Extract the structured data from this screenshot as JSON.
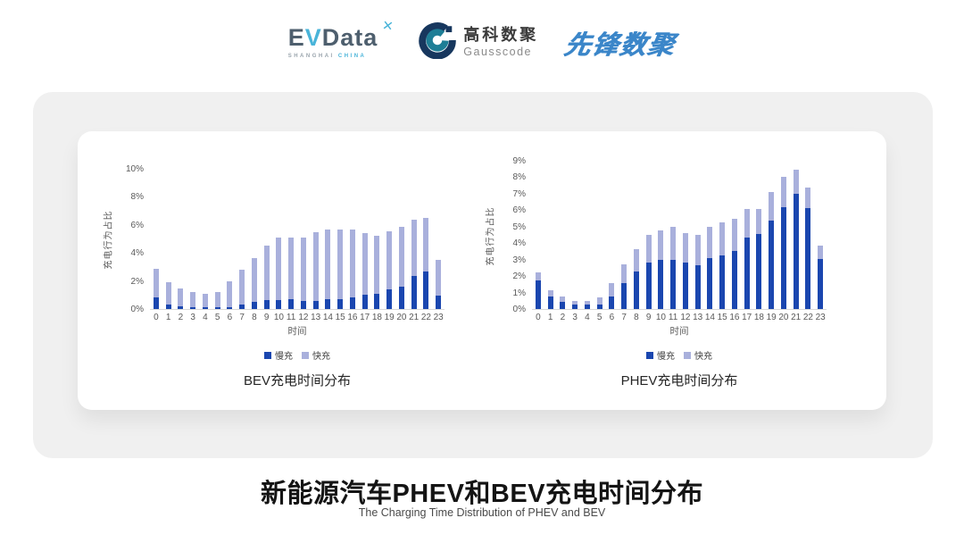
{
  "header": {
    "evdata": {
      "ev_e": "E",
      "ev_v": "V",
      "rest": "Data",
      "mark": "✕",
      "sub_left": "SHANGHAI",
      "sub_right": "CHINA"
    },
    "gausscode": {
      "cn": "高科数聚",
      "en": "Gausscode"
    },
    "pioneer": "先锋数聚"
  },
  "chart_data": [
    {
      "type": "bar",
      "stacked": true,
      "title": "BEV充电时间分布",
      "xlabel": "时间",
      "ylabel": "充电行为占比",
      "categories": [
        "0",
        "1",
        "2",
        "3",
        "4",
        "5",
        "6",
        "7",
        "8",
        "9",
        "10",
        "11",
        "12",
        "13",
        "14",
        "15",
        "16",
        "17",
        "18",
        "19",
        "20",
        "21",
        "22",
        "23"
      ],
      "series": [
        {
          "name": "慢充",
          "color": "#1a46af",
          "values": [
            0.8,
            0.35,
            0.2,
            0.1,
            0.1,
            0.1,
            0.15,
            0.35,
            0.5,
            0.65,
            0.65,
            0.7,
            0.6,
            0.6,
            0.7,
            0.7,
            0.8,
            1.0,
            1.1,
            1.4,
            1.6,
            2.35,
            2.65,
            0.95
          ]
        },
        {
          "name": "快充",
          "color": "#a9b0dc",
          "values": [
            2.05,
            1.55,
            1.3,
            1.1,
            1.0,
            1.1,
            1.85,
            2.45,
            3.1,
            3.85,
            4.45,
            4.4,
            4.5,
            4.9,
            5.0,
            5.0,
            4.9,
            4.4,
            4.1,
            4.15,
            4.25,
            4.0,
            3.85,
            2.55
          ]
        }
      ],
      "ylim": [
        0,
        10
      ],
      "ytick_step": 2,
      "ytick_suffix": "%",
      "grid": false,
      "legend_position": "bottom"
    },
    {
      "type": "bar",
      "stacked": true,
      "title": "PHEV充电时间分布",
      "xlabel": "时间",
      "ylabel": "充电行为占比",
      "categories": [
        "0",
        "1",
        "2",
        "3",
        "4",
        "5",
        "6",
        "7",
        "8",
        "9",
        "10",
        "11",
        "12",
        "13",
        "14",
        "15",
        "16",
        "17",
        "18",
        "19",
        "20",
        "21",
        "22",
        "23"
      ],
      "series": [
        {
          "name": "慢充",
          "color": "#1a46af",
          "values": [
            1.75,
            0.75,
            0.45,
            0.25,
            0.25,
            0.3,
            0.75,
            1.6,
            2.3,
            2.8,
            3.0,
            3.0,
            2.8,
            2.65,
            3.1,
            3.25,
            3.55,
            4.35,
            4.55,
            5.35,
            6.2,
            7.0,
            6.15,
            3.05
          ]
        },
        {
          "name": "快充",
          "color": "#a9b0dc",
          "values": [
            0.45,
            0.4,
            0.3,
            0.25,
            0.25,
            0.4,
            0.85,
            1.1,
            1.35,
            1.7,
            1.8,
            2.0,
            1.8,
            1.85,
            1.9,
            2.0,
            1.95,
            1.75,
            1.55,
            1.75,
            1.8,
            1.45,
            1.25,
            0.8
          ]
        }
      ],
      "ylim": [
        0,
        9
      ],
      "ytick_step": 1,
      "ytick_suffix": "%",
      "grid": false,
      "legend_position": "bottom"
    }
  ],
  "footer": {
    "title": "新能源汽车PHEV和BEV充电时间分布",
    "subtitle": "The Charging Time Distribution of PHEV and BEV"
  }
}
